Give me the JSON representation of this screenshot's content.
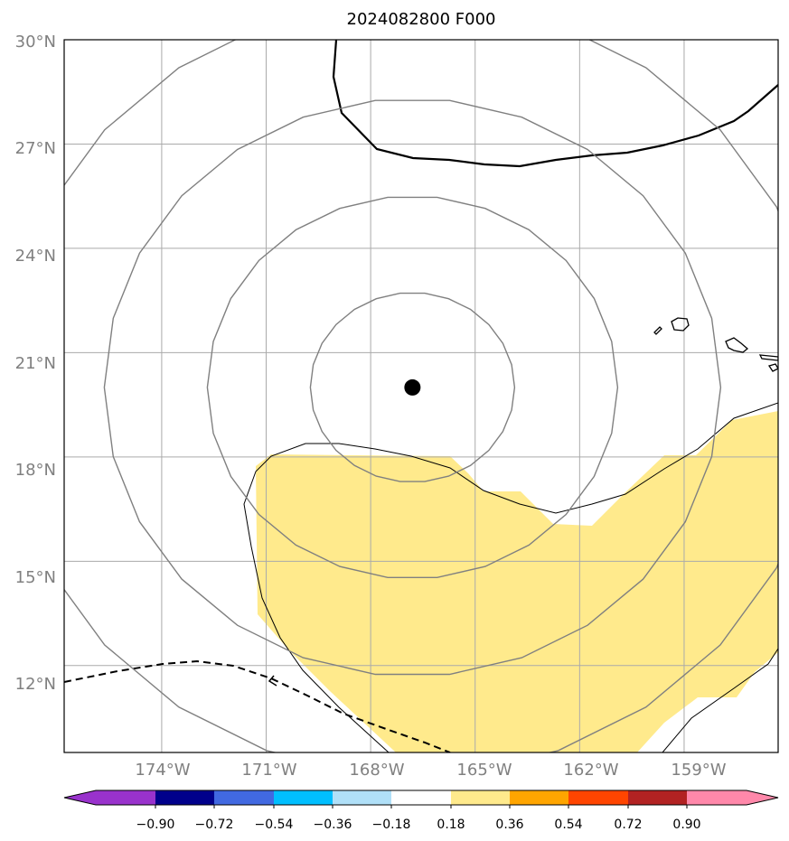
{
  "title": "2024082800 F000",
  "map": {
    "lat_range": [
      9.5,
      30.0
    ],
    "lon_range": [
      -176.8,
      -156.3
    ],
    "lat_ticks": [
      30,
      27,
      24,
      21,
      18,
      15,
      12
    ],
    "lon_ticks": [
      -174,
      -171,
      -168,
      -165,
      -162,
      -159
    ],
    "lat_labels": [
      "30°N",
      "27°N",
      "24°N",
      "21°N",
      "18°N",
      "15°N",
      "12°N"
    ],
    "lon_labels": [
      "174°W",
      "171°W",
      "168°W",
      "165°W",
      "162°W",
      "159°W"
    ],
    "storm_center": {
      "lon": -166.8,
      "lat": 20.0
    },
    "colors": {
      "grid": "#aaaaaa",
      "range_rings": "#808080",
      "shading": "#ffea8c",
      "center": "#000000"
    }
  },
  "colorbar": {
    "boundaries": [
      -0.9,
      -0.72,
      -0.54,
      -0.36,
      -0.18,
      0.18,
      0.36,
      0.54,
      0.72,
      0.9
    ],
    "labels": [
      "−0.90",
      "−0.72",
      "−0.54",
      "−0.36",
      "−0.18",
      "0.18",
      "0.36",
      "0.54",
      "0.72",
      "0.90"
    ],
    "colors": [
      "#9932cc",
      "#00008b",
      "#4169e1",
      "#00bfff",
      "#b0e0f8",
      "#ffffff",
      "#ffea8c",
      "#ffa500",
      "#ff4500",
      "#b22222",
      "#ff88aa"
    ]
  }
}
